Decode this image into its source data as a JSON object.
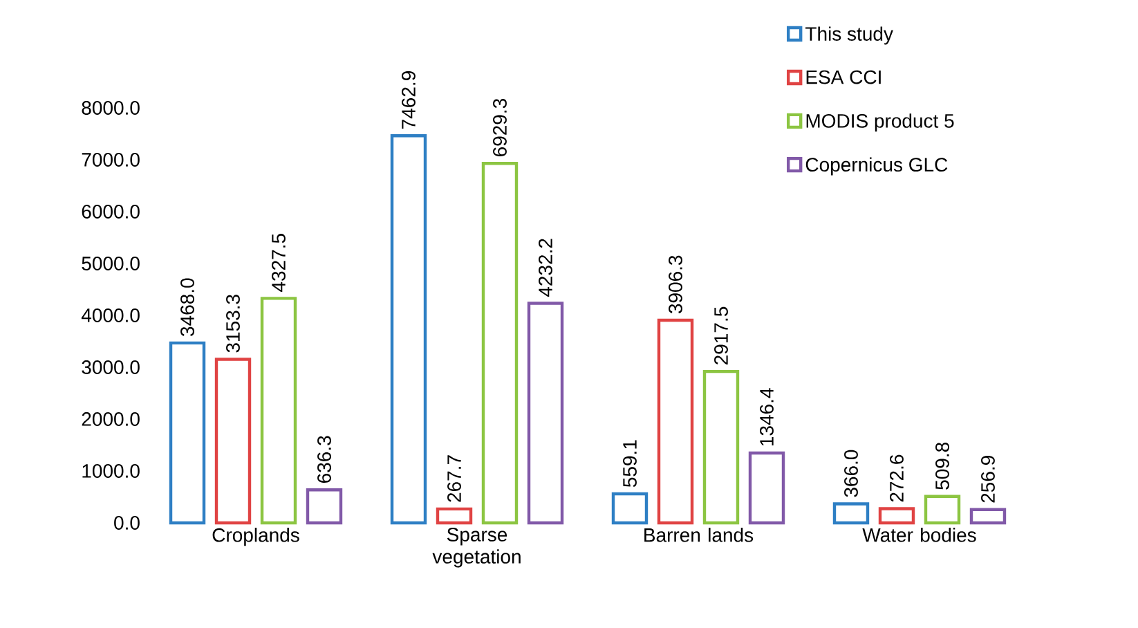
{
  "chart_data": {
    "type": "bar",
    "categories": [
      "Croplands",
      "Sparse vegetation",
      "Barren lands",
      "Water bodies"
    ],
    "series": [
      {
        "name": "This study",
        "color": "#2e7fc4",
        "values": [
          3468.0,
          7462.9,
          559.1,
          366.0
        ],
        "value_labels": [
          "3468.0",
          "7462.9",
          "559.1",
          "366.0"
        ]
      },
      {
        "name": "ESA CCI",
        "color": "#e04343",
        "values": [
          3153.3,
          267.7,
          3906.3,
          272.6
        ],
        "value_labels": [
          "3153.3",
          "267.7",
          "3906.3",
          "272.6"
        ]
      },
      {
        "name": "MODIS product 5",
        "color": "#8cc542",
        "values": [
          4327.5,
          6929.3,
          2917.5,
          509.8
        ],
        "value_labels": [
          "4327.5",
          "6929.3",
          "2917.5",
          "509.8"
        ]
      },
      {
        "name": "Copernicus GLC",
        "color": "#8159a8",
        "values": [
          636.3,
          4232.2,
          1346.4,
          256.9
        ],
        "value_labels": [
          "636.3",
          "4232.2",
          "1346.4",
          "256.9"
        ]
      }
    ],
    "ylim": [
      0,
      8000
    ],
    "yticks": [
      {
        "value": 0,
        "label": "0.0"
      },
      {
        "value": 1000,
        "label": "1000.0"
      },
      {
        "value": 2000,
        "label": "2000.0"
      },
      {
        "value": 3000,
        "label": "3000.0"
      },
      {
        "value": 4000,
        "label": "4000.0"
      },
      {
        "value": 5000,
        "label": "5000.0"
      },
      {
        "value": 6000,
        "label": "6000.0"
      },
      {
        "value": 7000,
        "label": "7000.0"
      },
      {
        "value": 8000,
        "label": "8000.0"
      }
    ],
    "legend": "right",
    "grid": false
  }
}
